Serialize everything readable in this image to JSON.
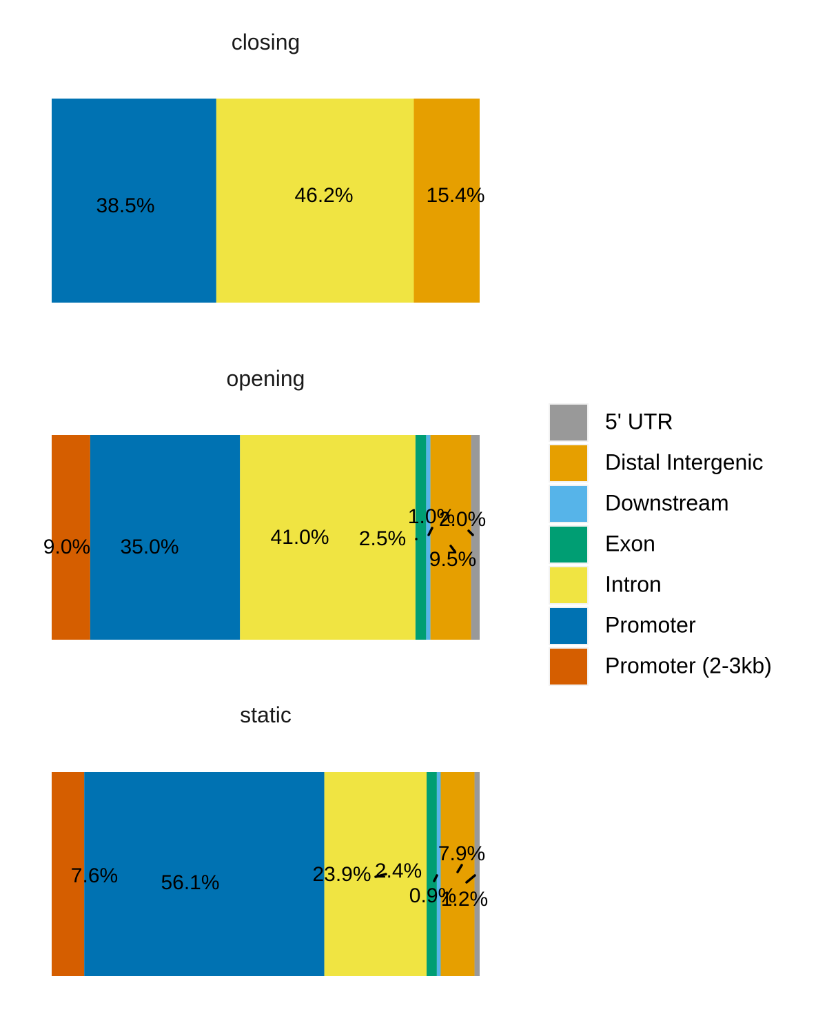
{
  "chart_data": {
    "type": "bar",
    "orientation": "horizontal",
    "stacked": true,
    "grid": false,
    "legend_position": "right",
    "legend": [
      {
        "name": "5' UTR",
        "color": "#999999"
      },
      {
        "name": "Distal Intergenic",
        "color": "#E69F00"
      },
      {
        "name": "Downstream",
        "color": "#56B4E9"
      },
      {
        "name": "Exon",
        "color": "#009E73"
      },
      {
        "name": "Intron",
        "color": "#F0E442"
      },
      {
        "name": "Promoter",
        "color": "#0072B2"
      },
      {
        "name": "Promoter (2-3kb)",
        "color": "#D55E00"
      }
    ],
    "panels": [
      {
        "title": "closing",
        "segments": [
          {
            "category": "Promoter",
            "value": 38.5,
            "label": "38.5%"
          },
          {
            "category": "Intron",
            "value": 46.2,
            "label": "46.2%"
          },
          {
            "category": "Distal Intergenic",
            "value": 15.4,
            "label": "15.4%"
          }
        ]
      },
      {
        "title": "opening",
        "segments": [
          {
            "category": "Promoter (2-3kb)",
            "value": 9.0,
            "label": "9.0%"
          },
          {
            "category": "Promoter",
            "value": 35.0,
            "label": "35.0%"
          },
          {
            "category": "Intron",
            "value": 41.0,
            "label": "41.0%"
          },
          {
            "category": "Exon",
            "value": 2.5,
            "label": "2.5%"
          },
          {
            "category": "Downstream",
            "value": 1.0,
            "label": "1.0%"
          },
          {
            "category": "Distal Intergenic",
            "value": 9.5,
            "label": "9.5%"
          },
          {
            "category": "5' UTR",
            "value": 2.0,
            "label": "2.0%"
          }
        ]
      },
      {
        "title": "static",
        "segments": [
          {
            "category": "Promoter (2-3kb)",
            "value": 7.6,
            "label": "7.6%"
          },
          {
            "category": "Promoter",
            "value": 56.1,
            "label": "56.1%"
          },
          {
            "category": "Intron",
            "value": 23.9,
            "label": "23.9%"
          },
          {
            "category": "Exon",
            "value": 2.4,
            "label": "2.4%"
          },
          {
            "category": "Downstream",
            "value": 0.9,
            "label": "0.9%"
          },
          {
            "category": "Distal Intergenic",
            "value": 7.9,
            "label": "7.9%"
          },
          {
            "category": "5' UTR",
            "value": 1.2,
            "label": "1.2%"
          }
        ]
      }
    ]
  }
}
